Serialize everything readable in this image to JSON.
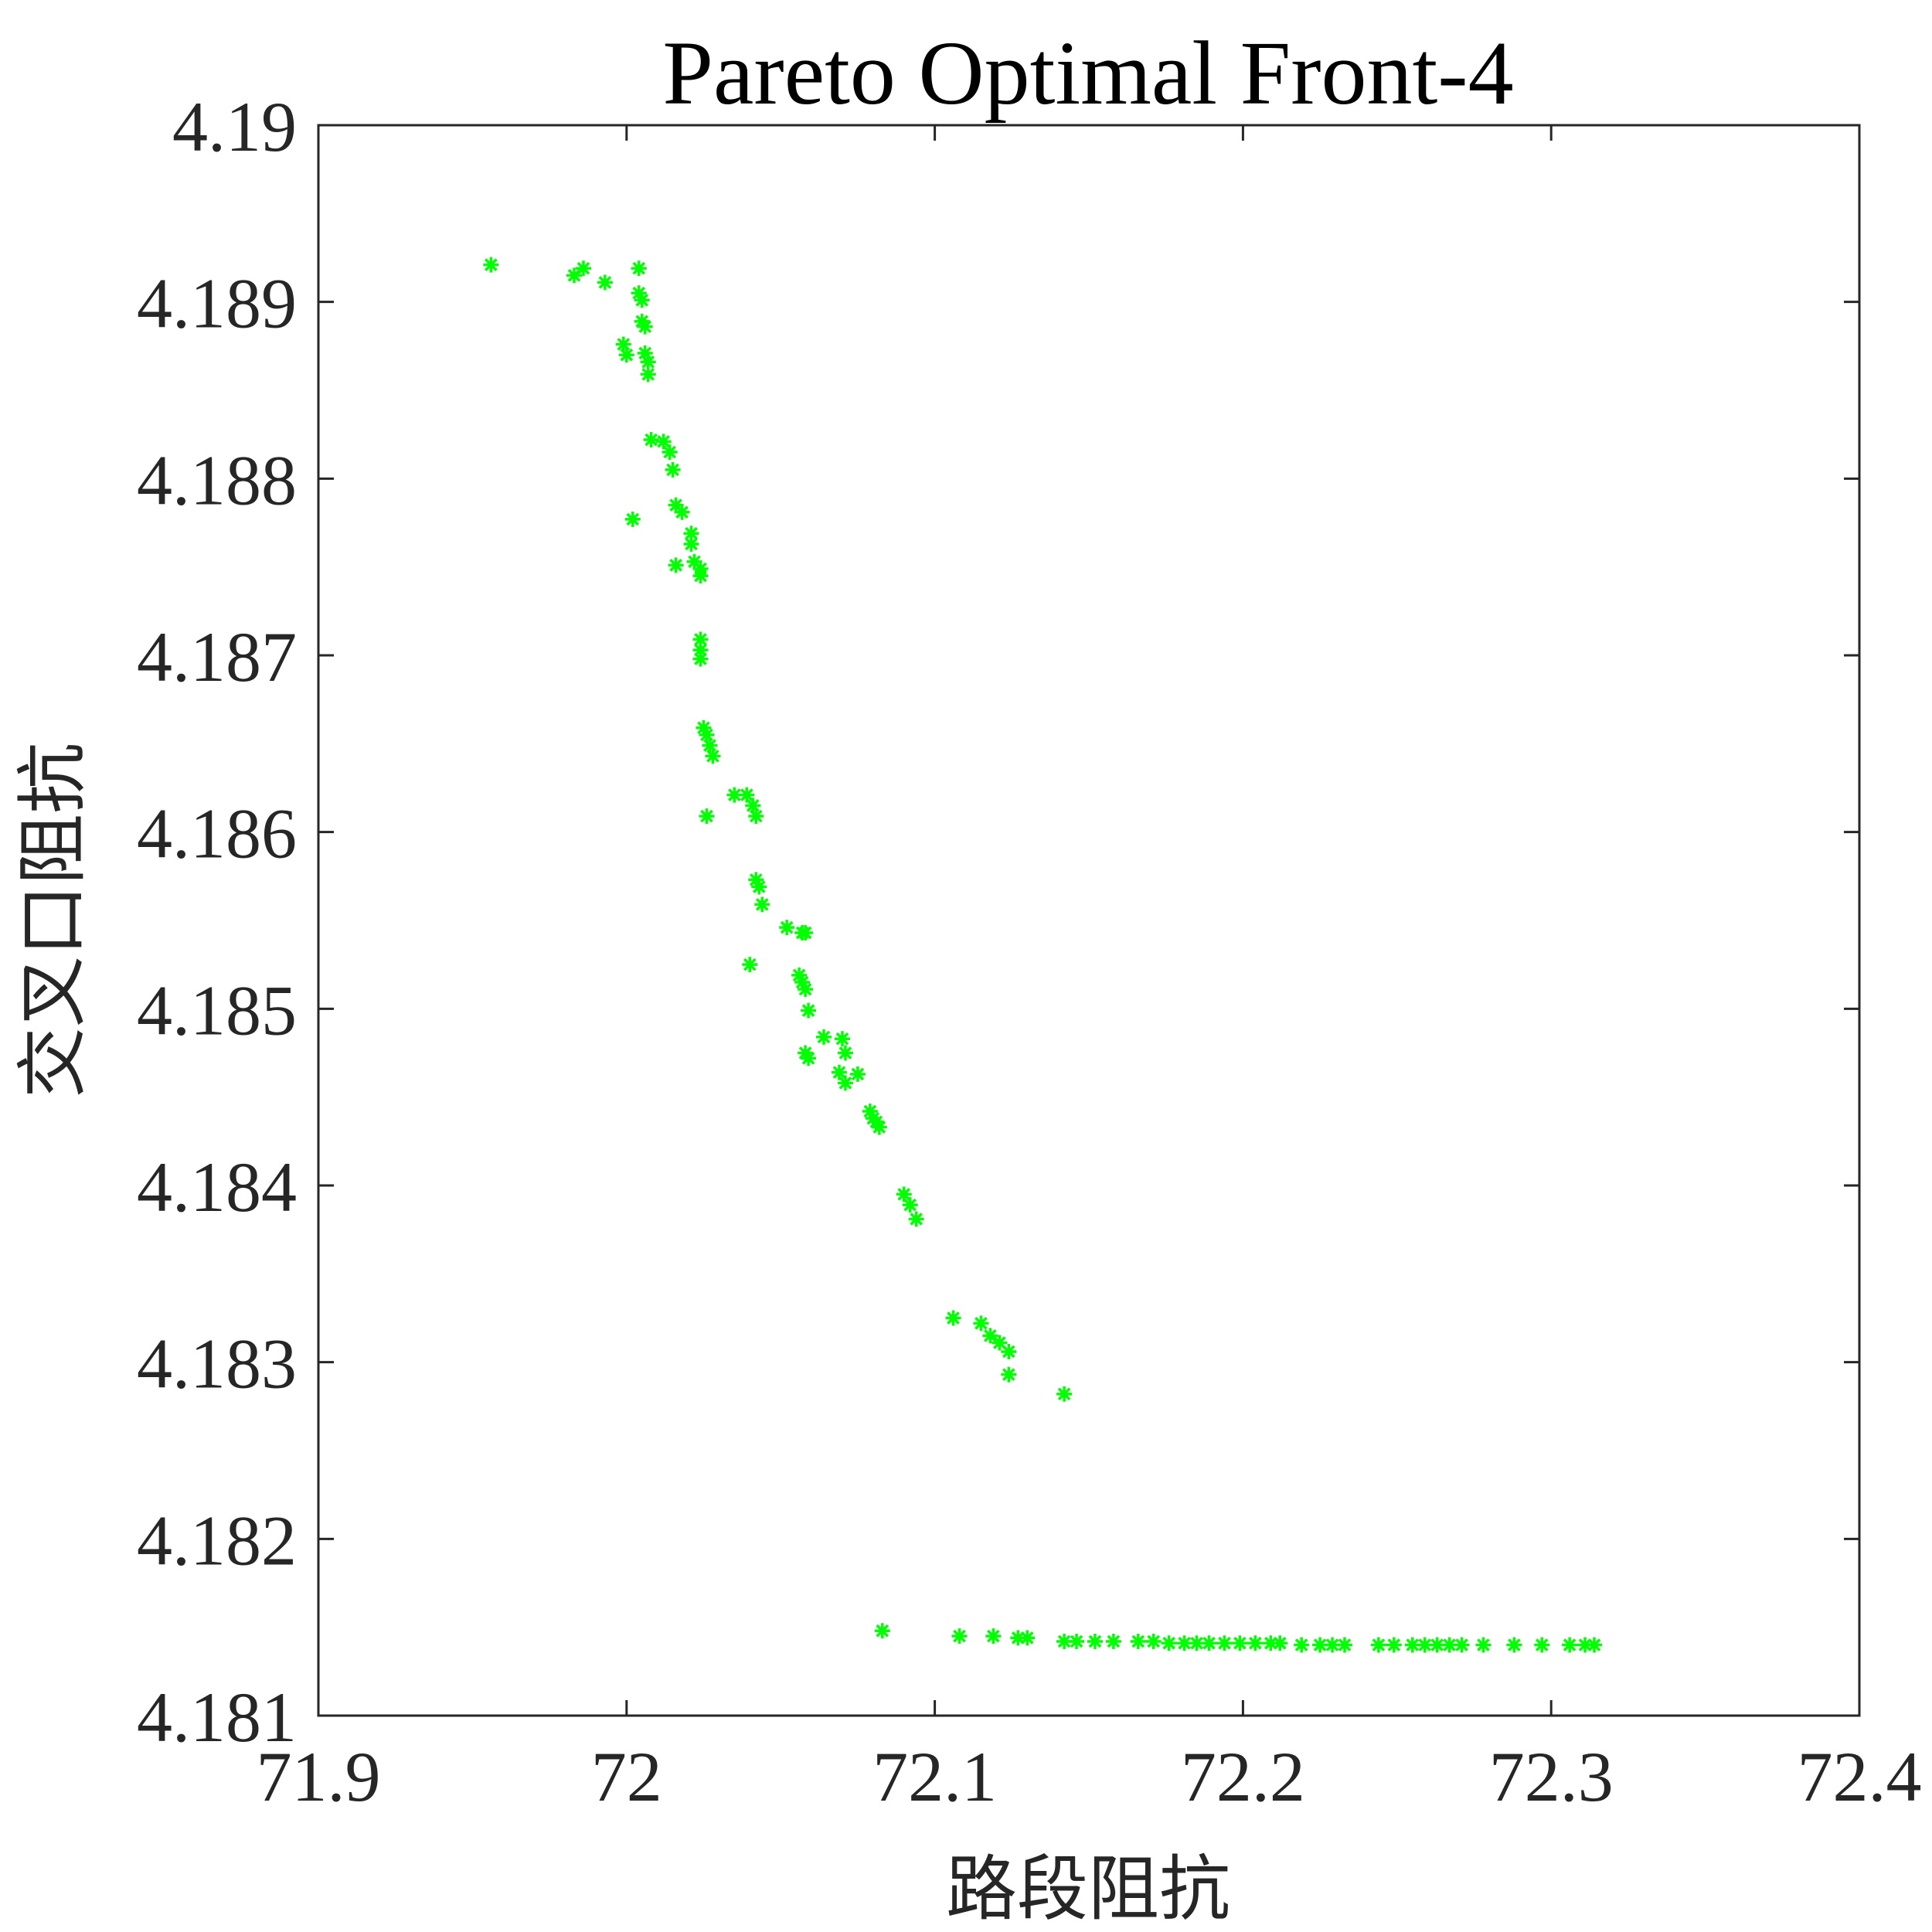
{
  "chart_data": {
    "type": "scatter",
    "title": "Pareto Optimal Front-4",
    "xlabel": "路段阻抗",
    "ylabel": "交叉口阻抗",
    "xlim": [
      71.9,
      72.4
    ],
    "ylim": [
      4.181,
      4.19
    ],
    "xticks": [
      71.9,
      72.0,
      72.1,
      72.2,
      72.3,
      72.4
    ],
    "xtick_labels": [
      "71.9",
      "72",
      "72.1",
      "72.2",
      "72.3",
      "72.4"
    ],
    "yticks": [
      4.181,
      4.182,
      4.183,
      4.184,
      4.185,
      4.186,
      4.187,
      4.188,
      4.189,
      4.19
    ],
    "ytick_labels": [
      "4.181",
      "4.182",
      "4.183",
      "4.184",
      "4.185",
      "4.186",
      "4.187",
      "4.188",
      "4.189",
      "4.19"
    ],
    "grid": false,
    "legend": false,
    "marker": "asterisk",
    "marker_color": "#00ff00",
    "points": [
      [
        71.956,
        4.18921
      ],
      [
        71.983,
        4.18915
      ],
      [
        71.986,
        4.18919
      ],
      [
        71.993,
        4.18911
      ],
      [
        72.004,
        4.18919
      ],
      [
        72.004,
        4.18905
      ],
      [
        72.005,
        4.18901
      ],
      [
        72.005,
        4.18889
      ],
      [
        72.006,
        4.18886
      ],
      [
        72.006,
        4.18871
      ],
      [
        72.007,
        4.18866
      ],
      [
        72.007,
        4.18859
      ],
      [
        71.999,
        4.18876
      ],
      [
        72.0,
        4.1887
      ],
      [
        72.008,
        4.18822
      ],
      [
        72.012,
        4.18821
      ],
      [
        72.014,
        4.18815
      ],
      [
        72.015,
        4.18805
      ],
      [
        72.002,
        4.18777
      ],
      [
        72.016,
        4.18785
      ],
      [
        72.018,
        4.18781
      ],
      [
        72.021,
        4.18769
      ],
      [
        72.021,
        4.18763
      ],
      [
        72.022,
        4.18753
      ],
      [
        72.016,
        4.18751
      ],
      [
        72.024,
        4.18749
      ],
      [
        72.024,
        4.18745
      ],
      [
        72.024,
        4.18709
      ],
      [
        72.024,
        4.18703
      ],
      [
        72.024,
        4.18698
      ],
      [
        72.025,
        4.18659
      ],
      [
        72.026,
        4.18655
      ],
      [
        72.027,
        4.18649
      ],
      [
        72.028,
        4.18643
      ],
      [
        72.026,
        4.18609
      ],
      [
        72.035,
        4.18621
      ],
      [
        72.039,
        4.18621
      ],
      [
        72.041,
        4.18615
      ],
      [
        72.042,
        4.18609
      ],
      [
        72.042,
        4.18573
      ],
      [
        72.043,
        4.18569
      ],
      [
        72.044,
        4.18559
      ],
      [
        72.04,
        4.18525
      ],
      [
        72.052,
        4.18546
      ],
      [
        72.057,
        4.18543
      ],
      [
        72.058,
        4.18543
      ],
      [
        72.056,
        4.18519
      ],
      [
        72.057,
        4.18515
      ],
      [
        72.058,
        4.18511
      ],
      [
        72.059,
        4.18499
      ],
      [
        72.058,
        4.18475
      ],
      [
        72.059,
        4.18472
      ],
      [
        72.064,
        4.18484
      ],
      [
        72.07,
        4.18483
      ],
      [
        72.071,
        4.18475
      ],
      [
        72.069,
        4.18464
      ],
      [
        72.071,
        4.18458
      ],
      [
        72.075,
        4.18463
      ],
      [
        72.079,
        4.18442
      ],
      [
        72.08,
        4.18438
      ],
      [
        72.081,
        4.18436
      ],
      [
        72.082,
        4.18433
      ],
      [
        72.09,
        4.18395
      ],
      [
        72.092,
        4.18389
      ],
      [
        72.094,
        4.18381
      ],
      [
        72.106,
        4.18325
      ],
      [
        72.115,
        4.18322
      ],
      [
        72.118,
        4.18315
      ],
      [
        72.121,
        4.18311
      ],
      [
        72.124,
        4.18306
      ],
      [
        72.124,
        4.18293
      ],
      [
        72.142,
        4.18282
      ],
      [
        72.083,
        4.18148
      ],
      [
        72.108,
        4.18145
      ],
      [
        72.119,
        4.18145
      ],
      [
        72.127,
        4.18144
      ],
      [
        72.13,
        4.18144
      ],
      [
        72.142,
        4.18142
      ],
      [
        72.146,
        4.18142
      ],
      [
        72.152,
        4.18142
      ],
      [
        72.158,
        4.18142
      ],
      [
        72.166,
        4.18142
      ],
      [
        72.171,
        4.18142
      ],
      [
        72.176,
        4.18141
      ],
      [
        72.181,
        4.18141
      ],
      [
        72.185,
        4.18141
      ],
      [
        72.189,
        4.18141
      ],
      [
        72.194,
        4.18141
      ],
      [
        72.199,
        4.18141
      ],
      [
        72.204,
        4.18141
      ],
      [
        72.209,
        4.18141
      ],
      [
        72.212,
        4.18141
      ],
      [
        72.219,
        4.1814
      ],
      [
        72.225,
        4.1814
      ],
      [
        72.229,
        4.1814
      ],
      [
        72.233,
        4.1814
      ],
      [
        72.244,
        4.1814
      ],
      [
        72.249,
        4.1814
      ],
      [
        72.255,
        4.1814
      ],
      [
        72.259,
        4.1814
      ],
      [
        72.263,
        4.1814
      ],
      [
        72.267,
        4.1814
      ],
      [
        72.271,
        4.1814
      ],
      [
        72.278,
        4.1814
      ],
      [
        72.288,
        4.1814
      ],
      [
        72.297,
        4.1814
      ],
      [
        72.306,
        4.1814
      ],
      [
        72.311,
        4.1814
      ],
      [
        72.314,
        4.1814
      ]
    ]
  }
}
